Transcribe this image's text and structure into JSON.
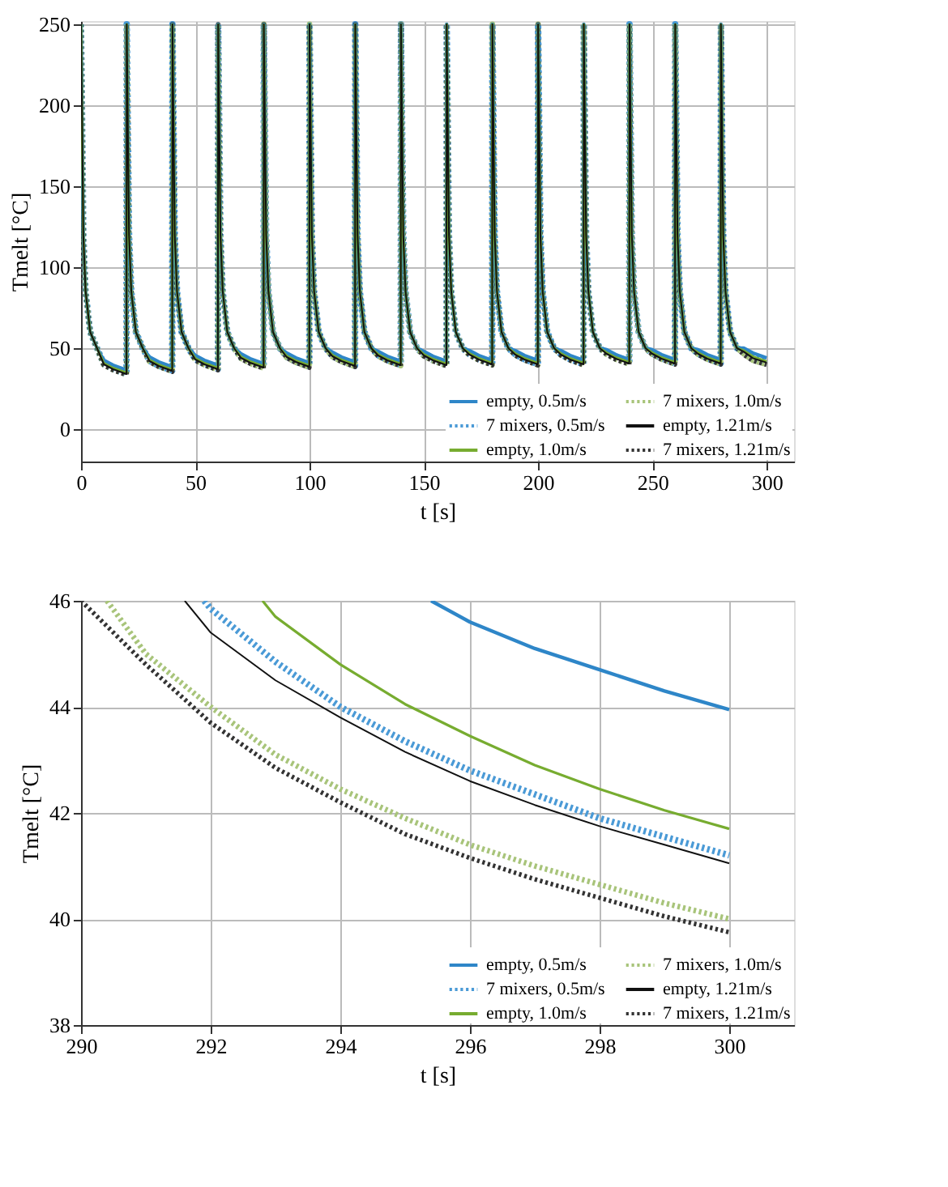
{
  "chart_data": [
    {
      "type": "line",
      "xlabel": "t [s]",
      "ylabel": "Tmelt [°C]",
      "xlim": [
        0,
        312
      ],
      "ylim": [
        -20,
        252
      ],
      "xticks": [
        0,
        50,
        100,
        150,
        200,
        250,
        300
      ],
      "yticks": [
        0,
        50,
        100,
        150,
        200,
        250
      ],
      "grid": true,
      "legend": "bottom right",
      "x": [
        0,
        1,
        2,
        4,
        7,
        10,
        14,
        19.9,
        20,
        21,
        22,
        24,
        27,
        30,
        34,
        39.9,
        40,
        41,
        42,
        44,
        47,
        50,
        54,
        59.9,
        60,
        61,
        62,
        64,
        67,
        70,
        74,
        79.9,
        80,
        81,
        82,
        84,
        87,
        90,
        94,
        99.9,
        100,
        101,
        102,
        104,
        107,
        110,
        114,
        119.9,
        120,
        121,
        122,
        124,
        127,
        130,
        134,
        139.9,
        140,
        141,
        142,
        144,
        147,
        150,
        154,
        159.9,
        160,
        161,
        162,
        164,
        167,
        170,
        174,
        179.9,
        180,
        181,
        182,
        184,
        187,
        190,
        194,
        199.9,
        200,
        201,
        202,
        204,
        207,
        210,
        214,
        219.9,
        220,
        221,
        222,
        224,
        227,
        230,
        234,
        239.9,
        240,
        241,
        242,
        244,
        247,
        250,
        254,
        259.9,
        260,
        261,
        262,
        264,
        267,
        270,
        274,
        279.9,
        280,
        281,
        282,
        284,
        287,
        290,
        294,
        300
      ],
      "series": [
        {
          "name": "empty, 0.5m/s",
          "color": "#2e86c8",
          "line_style": "solid",
          "values": [
            250,
            120,
            85,
            60,
            50,
            42.5,
            39.5,
            36.5,
            250,
            120,
            85,
            60,
            50,
            44.5,
            41.5,
            38.5,
            250,
            120,
            85,
            60,
            50,
            45.5,
            42.5,
            39.5,
            250,
            120,
            85,
            60,
            50,
            46.5,
            43.5,
            40.5,
            250,
            120,
            85,
            60,
            50,
            47,
            44,
            41,
            250,
            120,
            85,
            60,
            50,
            47.5,
            44.5,
            41.5,
            250,
            120,
            85,
            60,
            50,
            48,
            45,
            42,
            250,
            120,
            85,
            60,
            50,
            48,
            45,
            42,
            250,
            120,
            85,
            60,
            50,
            48.5,
            45.5,
            42.5,
            250,
            120,
            85,
            60,
            50,
            48.5,
            45.5,
            42.5,
            250,
            120,
            85,
            60,
            50,
            48.5,
            45.5,
            42.5,
            250,
            120,
            85,
            60,
            50,
            49,
            46,
            43,
            250,
            120,
            85,
            60,
            50,
            49,
            46,
            43,
            250,
            120,
            85,
            60,
            50,
            49,
            46,
            43,
            250,
            120,
            85,
            60,
            50,
            50,
            47,
            43.95
          ]
        },
        {
          "name": "empty, 1.0m/s",
          "color": "#77ac30",
          "line_style": "solid",
          "values": [
            250,
            120,
            85,
            60,
            50,
            40.7,
            37.7,
            34.7,
            250,
            120,
            85,
            60,
            50,
            42.7,
            39.7,
            36.7,
            250,
            120,
            85,
            60,
            50,
            43.7,
            40.7,
            37.7,
            250,
            120,
            85,
            60,
            50,
            44.7,
            41.7,
            38.7,
            250,
            120,
            85,
            60,
            50,
            45.2,
            42.2,
            39.2,
            250,
            120,
            85,
            60,
            50,
            45.7,
            42.7,
            39.7,
            250,
            120,
            85,
            60,
            50,
            46.2,
            43.2,
            40.2,
            250,
            120,
            85,
            60,
            50,
            46.2,
            43.2,
            40.2,
            250,
            120,
            85,
            60,
            50,
            46.7,
            43.7,
            40.7,
            250,
            120,
            85,
            60,
            50,
            46.7,
            43.7,
            40.7,
            250,
            120,
            85,
            60,
            50,
            46.7,
            43.7,
            40.7,
            250,
            120,
            85,
            60,
            50,
            47.2,
            44.2,
            41.2,
            250,
            120,
            85,
            60,
            50,
            47.2,
            44.2,
            41.2,
            250,
            120,
            85,
            60,
            50,
            47.2,
            44.2,
            41.2,
            250,
            120,
            85,
            60,
            50,
            48.5,
            44.8,
            41.7
          ]
        },
        {
          "name": "empty, 1.21m/s",
          "color": "#111111",
          "line_style": "solid",
          "values": [
            250,
            120,
            85,
            60,
            50,
            40,
            37,
            34,
            250,
            120,
            85,
            60,
            50,
            42,
            39,
            36,
            250,
            120,
            85,
            60,
            50,
            43,
            40,
            37,
            250,
            120,
            85,
            60,
            50,
            44,
            41,
            38,
            250,
            120,
            85,
            60,
            50,
            44.5,
            41.5,
            38.5,
            250,
            120,
            85,
            60,
            50,
            45,
            42,
            39,
            250,
            120,
            85,
            60,
            50,
            45.5,
            42.5,
            39.5,
            250,
            120,
            85,
            60,
            50,
            45.5,
            42.5,
            39.5,
            250,
            120,
            85,
            60,
            50,
            46,
            43,
            40,
            250,
            120,
            85,
            60,
            50,
            46,
            43,
            40,
            250,
            120,
            85,
            60,
            50,
            46,
            43,
            40,
            250,
            120,
            85,
            60,
            50,
            46.5,
            43.5,
            40.5,
            250,
            120,
            85,
            60,
            50,
            46.5,
            43.5,
            40.5,
            250,
            120,
            85,
            60,
            50,
            46.5,
            43.5,
            40.5,
            250,
            120,
            85,
            60,
            50,
            47.8,
            43.8,
            41.05
          ]
        },
        {
          "name": "7 mixers, 0.5m/s",
          "color": "#4a9ad6",
          "line_style": "dotted",
          "values": [
            250,
            120,
            85,
            60,
            50,
            40.2,
            37.2,
            34.2,
            250,
            120,
            85,
            60,
            50,
            42.2,
            39.2,
            36.2,
            250,
            120,
            85,
            60,
            50,
            43.2,
            40.2,
            37.2,
            250,
            120,
            85,
            60,
            50,
            44.2,
            41.2,
            38.2,
            250,
            120,
            85,
            60,
            50,
            44.7,
            41.7,
            38.7,
            250,
            120,
            85,
            60,
            50,
            45.2,
            42.2,
            39.2,
            250,
            120,
            85,
            60,
            50,
            45.7,
            42.7,
            39.7,
            250,
            120,
            85,
            60,
            50,
            45.7,
            42.7,
            39.7,
            250,
            120,
            85,
            60,
            50,
            46.2,
            43.2,
            40.2,
            250,
            120,
            85,
            60,
            50,
            46.2,
            43.2,
            40.2,
            250,
            120,
            85,
            60,
            50,
            46.2,
            43.2,
            40.2,
            250,
            120,
            85,
            60,
            50,
            46.7,
            43.7,
            40.7,
            250,
            120,
            85,
            60,
            50,
            46.7,
            43.7,
            40.7,
            250,
            120,
            85,
            60,
            50,
            46.7,
            43.7,
            40.7,
            250,
            120,
            85,
            60,
            50,
            48,
            44.0,
            41.2
          ]
        },
        {
          "name": "7 mixers, 1.0m/s",
          "color": "#a8c47a",
          "line_style": "dotted",
          "values": [
            250,
            120,
            85,
            60,
            50,
            39.7,
            36.7,
            33.7,
            250,
            120,
            85,
            60,
            50,
            41.7,
            38.7,
            35.7,
            250,
            120,
            85,
            60,
            50,
            42.7,
            39.7,
            36.7,
            250,
            120,
            85,
            60,
            50,
            43.7,
            40.7,
            37.7,
            250,
            120,
            85,
            60,
            50,
            44.2,
            41.2,
            38.2,
            250,
            120,
            85,
            60,
            50,
            44.7,
            41.7,
            38.7,
            250,
            120,
            85,
            60,
            50,
            45.2,
            42.2,
            39.2,
            250,
            120,
            85,
            60,
            50,
            45.2,
            42.2,
            39.2,
            250,
            120,
            85,
            60,
            50,
            45.7,
            42.7,
            39.7,
            250,
            120,
            85,
            60,
            50,
            45.7,
            42.7,
            39.7,
            250,
            120,
            85,
            60,
            50,
            45.7,
            42.7,
            39.7,
            250,
            120,
            85,
            60,
            50,
            46.2,
            43.2,
            40.2,
            250,
            120,
            85,
            60,
            50,
            46.2,
            43.2,
            40.2,
            250,
            120,
            85,
            60,
            50,
            46.2,
            43.2,
            40.2,
            250,
            120,
            85,
            60,
            50,
            46.5,
            42.45,
            40.0
          ]
        },
        {
          "name": "7 mixers, 1.21m/s",
          "color": "#333333",
          "line_style": "dotted",
          "values": [
            250,
            120,
            85,
            60,
            50,
            39.5,
            36.5,
            33.5,
            250,
            120,
            85,
            60,
            50,
            41.5,
            38.5,
            35.5,
            250,
            120,
            85,
            60,
            50,
            42.5,
            39.5,
            36.5,
            250,
            120,
            85,
            60,
            50,
            43.5,
            40.5,
            37.5,
            250,
            120,
            85,
            60,
            50,
            44,
            41,
            38,
            250,
            120,
            85,
            60,
            50,
            44.5,
            41.5,
            38.5,
            250,
            120,
            85,
            60,
            50,
            45,
            42,
            39,
            250,
            120,
            85,
            60,
            50,
            45,
            42,
            39,
            250,
            120,
            85,
            60,
            50,
            45.5,
            42.5,
            39.5,
            250,
            120,
            85,
            60,
            50,
            45.5,
            42.5,
            39.5,
            250,
            120,
            85,
            60,
            50,
            45.5,
            42.5,
            39.5,
            250,
            120,
            85,
            60,
            50,
            46,
            43,
            40,
            250,
            120,
            85,
            60,
            50,
            46,
            43,
            40,
            250,
            120,
            85,
            60,
            50,
            46,
            43,
            40,
            250,
            120,
            85,
            60,
            50,
            46,
            42.2,
            39.75
          ]
        }
      ]
    },
    {
      "type": "line",
      "xlabel": "t [s]",
      "ylabel": "Tmelt [°C]",
      "xlim": [
        290,
        301
      ],
      "ylim": [
        38,
        46
      ],
      "xticks": [
        290,
        292,
        294,
        296,
        298,
        300
      ],
      "yticks": [
        38,
        40,
        42,
        44,
        46
      ],
      "grid": true,
      "legend": "bottom right",
      "series": [
        {
          "name": "empty, 0.5m/s",
          "color": "#2e86c8",
          "line_style": "solid",
          "x": [
            295.4,
            296,
            297,
            298,
            299,
            300
          ],
          "values": [
            46,
            45.6,
            45.1,
            44.7,
            44.3,
            43.95
          ]
        },
        {
          "name": "empty, 1.0m/s",
          "color": "#77ac30",
          "line_style": "solid",
          "x": [
            292.8,
            293,
            294,
            295,
            296,
            297,
            298,
            299,
            300
          ],
          "values": [
            46,
            45.7,
            44.8,
            44.05,
            43.45,
            42.9,
            42.45,
            42.05,
            41.7
          ]
        },
        {
          "name": "empty, 1.21m/s",
          "color": "#111111",
          "line_style": "solid",
          "x": [
            291.6,
            292,
            293,
            294,
            295,
            296,
            297,
            298,
            299,
            300
          ],
          "values": [
            46,
            45.4,
            44.5,
            43.8,
            43.15,
            42.6,
            42.15,
            41.75,
            41.4,
            41.05
          ]
        },
        {
          "name": "7 mixers, 0.5m/s",
          "color": "#4a9ad6",
          "line_style": "dotted",
          "x": [
            291.9,
            292,
            293,
            294,
            295,
            296,
            297,
            298,
            299,
            300
          ],
          "values": [
            46,
            45.85,
            44.85,
            44.0,
            43.35,
            42.8,
            42.35,
            41.9,
            41.55,
            41.2
          ]
        },
        {
          "name": "7 mixers, 1.0m/s",
          "color": "#a8c47a",
          "line_style": "dotted",
          "x": [
            290.4,
            291,
            292,
            293,
            294,
            295,
            296,
            297,
            298,
            299,
            300
          ],
          "values": [
            46,
            45.0,
            44.0,
            43.1,
            42.45,
            41.9,
            41.4,
            41.0,
            40.65,
            40.3,
            40.0
          ]
        },
        {
          "name": "7 mixers, 1.21m/s",
          "color": "#333333",
          "line_style": "dotted",
          "x": [
            290,
            291,
            292,
            293,
            294,
            295,
            296,
            297,
            298,
            299,
            300
          ],
          "values": [
            46,
            44.8,
            43.7,
            42.85,
            42.2,
            41.6,
            41.15,
            40.75,
            40.4,
            40.05,
            39.75
          ]
        }
      ]
    }
  ]
}
